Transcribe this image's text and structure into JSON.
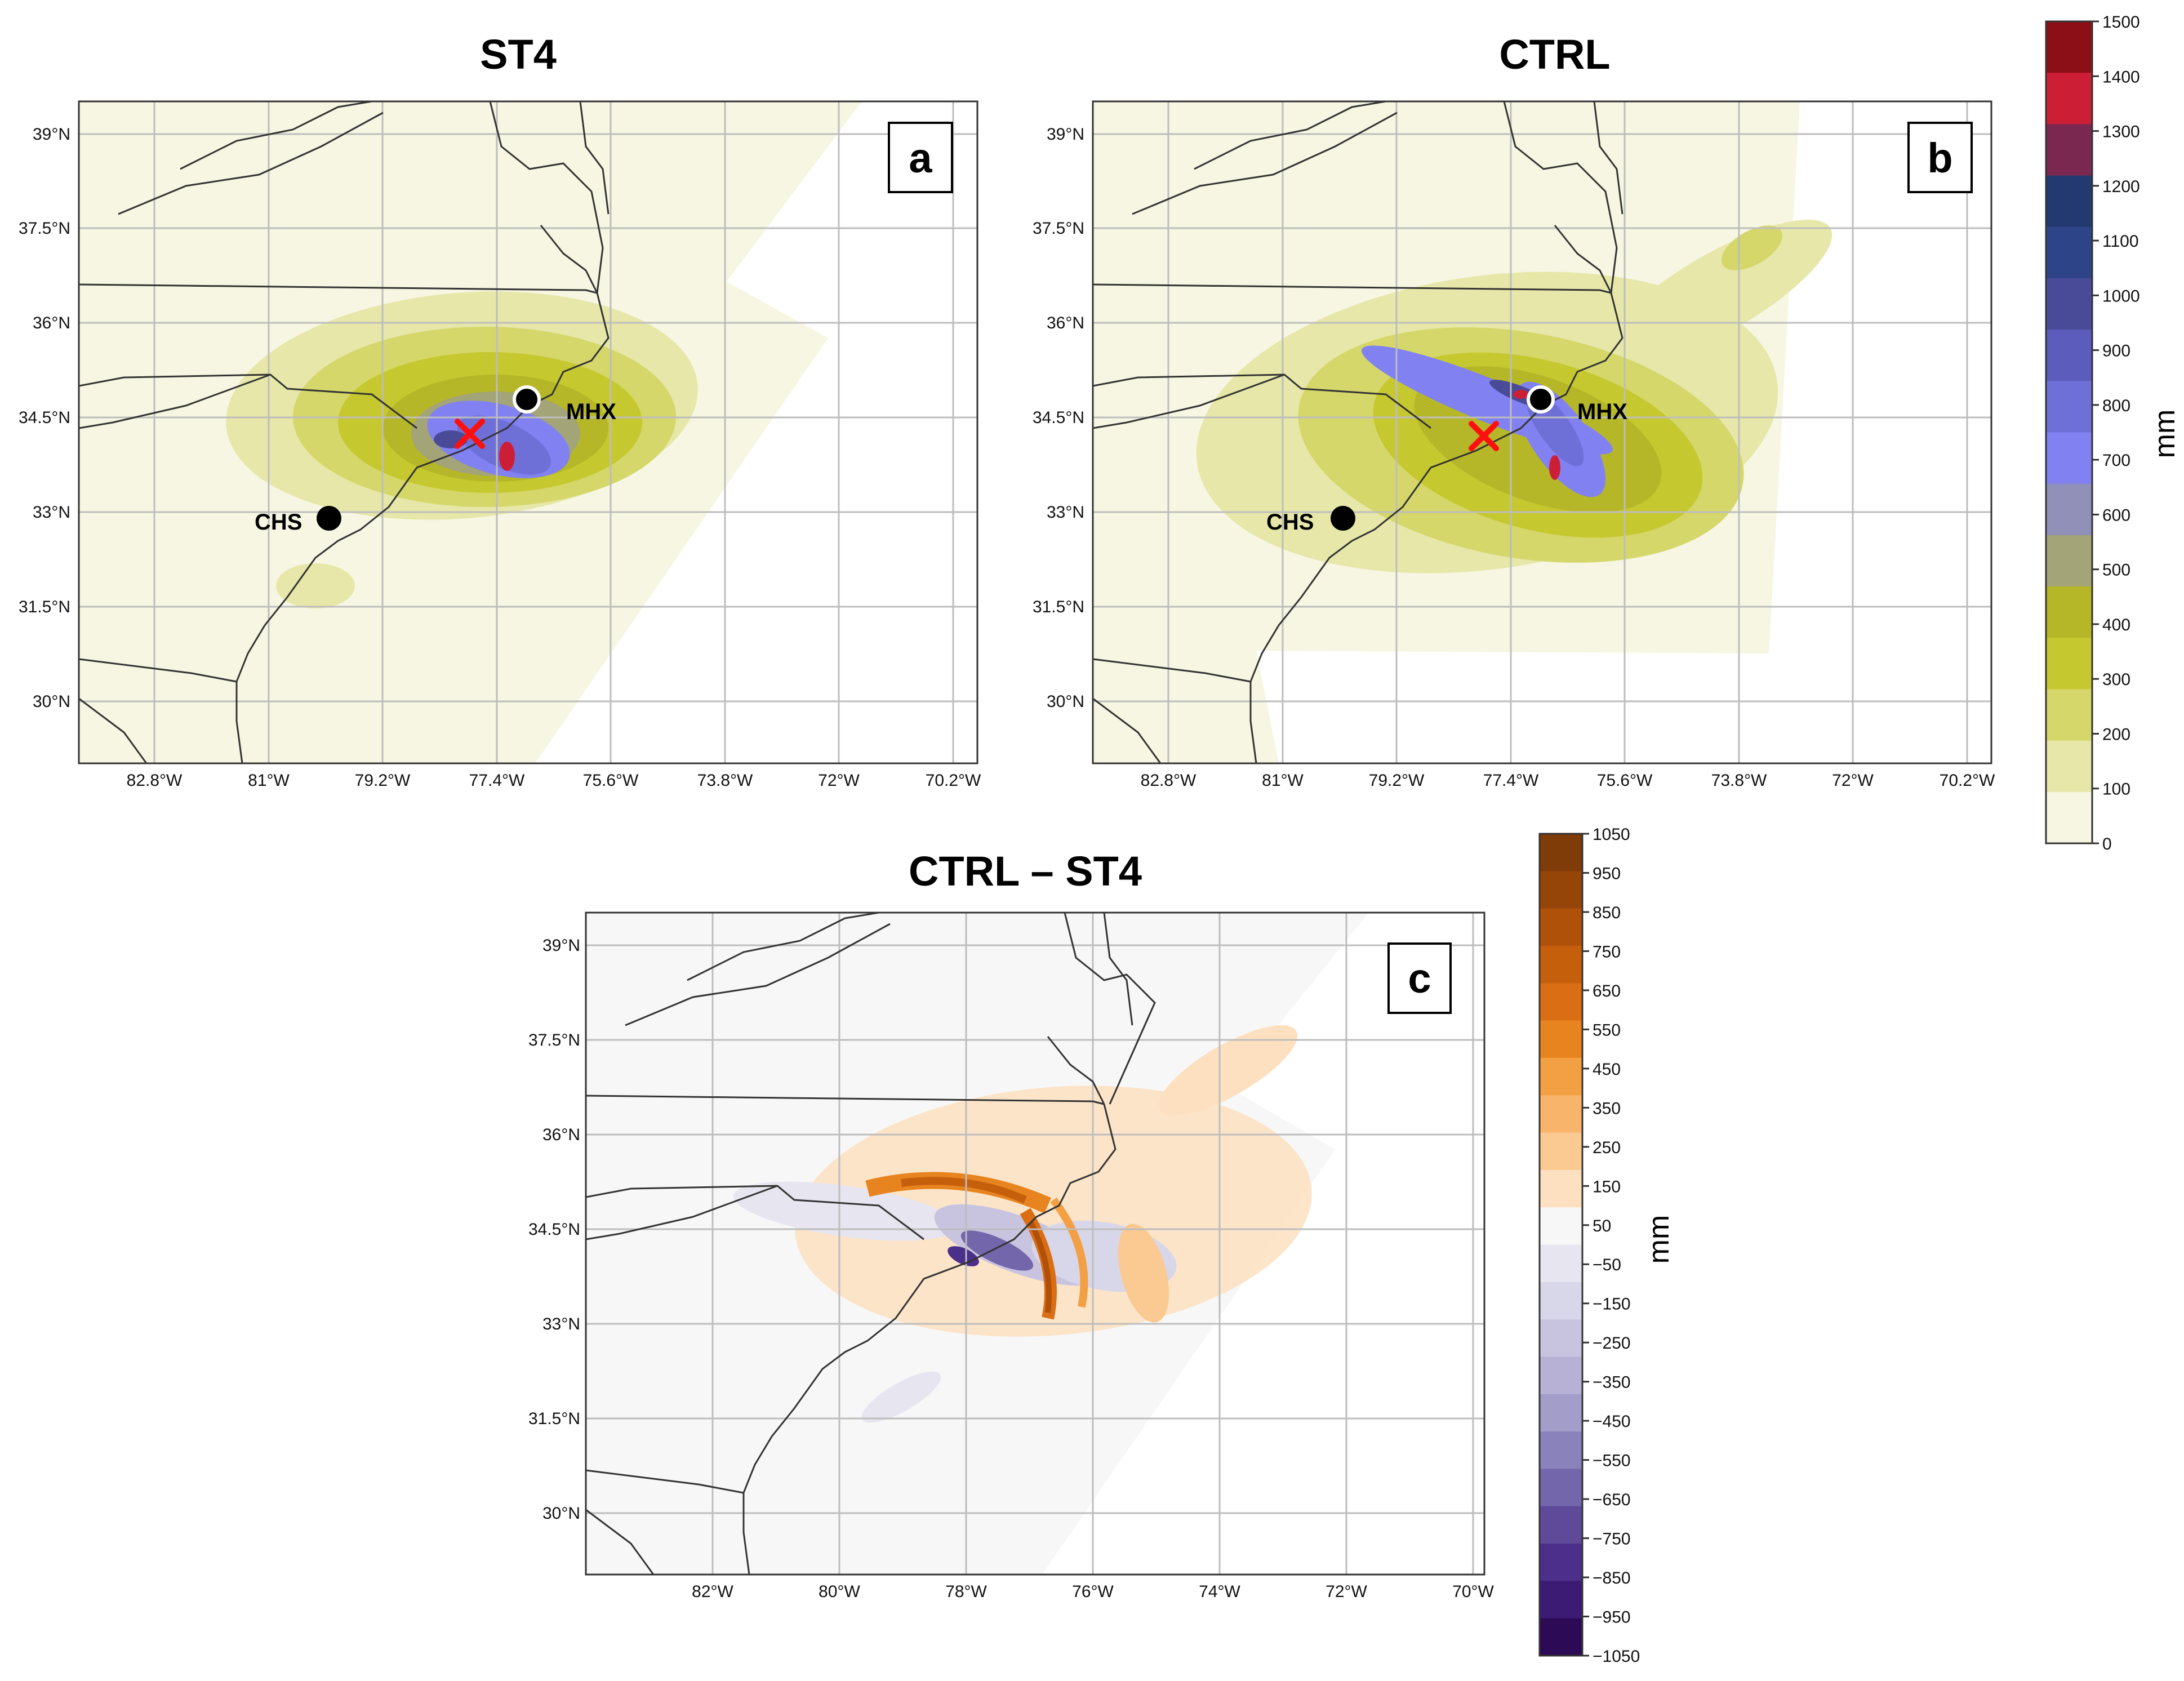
{
  "panels": [
    {
      "id": "a",
      "title": "ST4",
      "letter": "a",
      "lat_labels": [
        "39°N",
        "37.5°N",
        "36°N",
        "34.5°N",
        "33°N",
        "31.5°N",
        "30°N"
      ],
      "lon_labels": [
        "82.8°W",
        "81°W",
        "79.2°W",
        "77.4°W",
        "75.6°W",
        "73.8°W",
        "72°W",
        "70.2°W"
      ],
      "stations": [
        {
          "name": "MHX"
        },
        {
          "name": "CHS"
        }
      ],
      "has_x_marker": true
    },
    {
      "id": "b",
      "title": "CTRL",
      "letter": "b",
      "lat_labels": [
        "39°N",
        "37.5°N",
        "36°N",
        "34.5°N",
        "33°N",
        "31.5°N",
        "30°N"
      ],
      "lon_labels": [
        "82.8°W",
        "81°W",
        "79.2°W",
        "77.4°W",
        "75.6°W",
        "73.8°W",
        "72°W",
        "70.2°W"
      ],
      "stations": [
        {
          "name": "MHX"
        },
        {
          "name": "CHS"
        }
      ],
      "has_x_marker": true
    },
    {
      "id": "c",
      "title": "CTRL – ST4",
      "letter": "c",
      "lat_labels": [
        "39°N",
        "37.5°N",
        "36°N",
        "34.5°N",
        "33°N",
        "31.5°N",
        "30°N"
      ],
      "lon_labels": [
        "82°W",
        "80°W",
        "78°W",
        "76°W",
        "74°W",
        "72°W",
        "70°W"
      ],
      "stations": [],
      "has_x_marker": false
    }
  ],
  "colorbar_precip": {
    "unit": "mm",
    "ticks": [
      "1500",
      "1400",
      "1300",
      "1200",
      "1100",
      "1000",
      "900",
      "800",
      "700",
      "600",
      "500",
      "400",
      "300",
      "200",
      "100",
      "0"
    ],
    "colors": [
      "#8c0f17",
      "#cc1f36",
      "#7a2850",
      "#223a70",
      "#2e4488",
      "#4a4b98",
      "#5c5cbc",
      "#6f6fd8",
      "#8181f2",
      "#9090b8",
      "#a3a477",
      "#b6b728",
      "#c6c830",
      "#d5d76a",
      "#e6e7a8",
      "#f6f6e2"
    ]
  },
  "colorbar_diff": {
    "unit": "mm",
    "ticks": [
      "1050",
      "950",
      "850",
      "750",
      "650",
      "550",
      "450",
      "350",
      "250",
      "150",
      "50",
      "−50",
      "−150",
      "−250",
      "−350",
      "−450",
      "−550",
      "−650",
      "−750",
      "−850",
      "−950",
      "−1050"
    ],
    "colors": [
      "#7f3b08",
      "#964509",
      "#b05109",
      "#c55f0c",
      "#d96e14",
      "#e8841f",
      "#f3a044",
      "#f8b46a",
      "#fbc992",
      "#fde0c0",
      "#f7f7f7",
      "#e7e5f0",
      "#d8d6e9",
      "#c8c4e0",
      "#b6b1d5",
      "#a29dc9",
      "#8a82bb",
      "#7466aa",
      "#5f4a9a",
      "#4c2f8a",
      "#3b1b74",
      "#2d0a56"
    ]
  }
}
